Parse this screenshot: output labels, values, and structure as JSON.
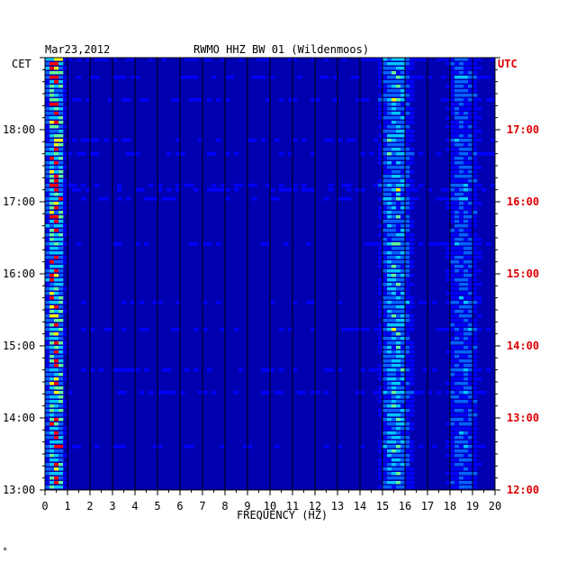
{
  "header": {
    "date": "Mar23,2012",
    "station": "RWMO HHZ BW 01 (Wildenmoos)"
  },
  "footer": {
    "mark": "*"
  },
  "chart_data": {
    "type": "heatmap",
    "title": "RWMO HHZ BW 01 (Wildenmoos)",
    "date": "Mar23,2012",
    "xlabel": "FREQUENCY (HZ)",
    "xlim": [
      0,
      20
    ],
    "x_ticks": [
      "0",
      "1",
      "2",
      "3",
      "4",
      "5",
      "6",
      "7",
      "8",
      "9",
      "10",
      "11",
      "12",
      "13",
      "14",
      "15",
      "16",
      "17",
      "18",
      "19",
      "20"
    ],
    "left_axis": {
      "label": "CET",
      "ticks": [
        "13:00",
        "14:00",
        "15:00",
        "16:00",
        "17:00",
        "18:00"
      ],
      "range": [
        "13:00",
        "19:00"
      ]
    },
    "right_axis": {
      "label": "UTC",
      "ticks": [
        "12:00",
        "13:00",
        "14:00",
        "15:00",
        "16:00",
        "17:00"
      ],
      "range": [
        "12:00",
        "18:00"
      ]
    },
    "grid": "vertical lines every 1 Hz",
    "energy_bands_hz": [
      {
        "from": 0.1,
        "to": 0.8,
        "level": "very high"
      },
      {
        "from": 15.0,
        "to": 16.2,
        "level": "high"
      },
      {
        "from": 18.0,
        "to": 19.2,
        "level": "medium"
      }
    ],
    "colors": {
      "background": "#0000b0",
      "low": "#0000ff",
      "mid": "#00c8ff",
      "high": "#ffff00",
      "peak": "#ff0000",
      "utc_label": "#e00000"
    }
  }
}
